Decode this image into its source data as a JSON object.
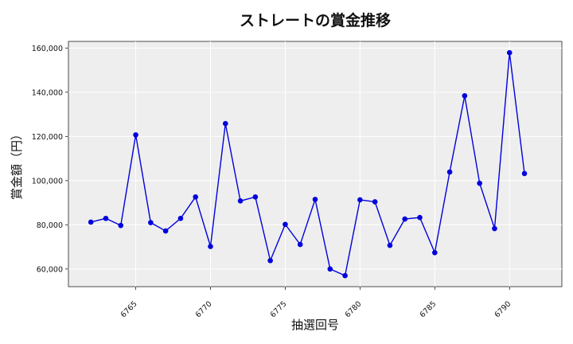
{
  "chart_data": {
    "type": "line",
    "title": "ストレートの賞金推移",
    "xlabel": "抽選回号",
    "ylabel": "賞金額（円）",
    "xlim": [
      6760.5,
      6793.5
    ],
    "ylim": [
      52000,
      163000
    ],
    "xticks": [
      6765,
      6770,
      6775,
      6780,
      6785,
      6790
    ],
    "yticks": [
      60000,
      80000,
      100000,
      120000,
      140000,
      160000
    ],
    "ytick_labels": [
      "60,000",
      "80,000",
      "100,000",
      "120,000",
      "140,000",
      "160,000"
    ],
    "grid": true,
    "series": [
      {
        "color": "#0000dd",
        "x": [
          6762,
          6763,
          6764,
          6765,
          6766,
          6767,
          6768,
          6769,
          6770,
          6771,
          6772,
          6773,
          6774,
          6775,
          6776,
          6777,
          6778,
          6779,
          6780,
          6781,
          6782,
          6783,
          6784,
          6785,
          6786,
          6787,
          6788,
          6789,
          6790,
          6791
        ],
        "values": [
          81200,
          82900,
          79700,
          120700,
          81000,
          77200,
          82900,
          92600,
          70200,
          125800,
          90800,
          92600,
          63800,
          80200,
          71100,
          91500,
          60000,
          57000,
          91300,
          90400,
          70700,
          82600,
          83300,
          67400,
          103900,
          138400,
          98800,
          78300,
          157900,
          103200
        ]
      }
    ]
  },
  "colors": {
    "plot_background": "#eeeeee",
    "grid": "#ffffff",
    "line": "#0000dd"
  }
}
